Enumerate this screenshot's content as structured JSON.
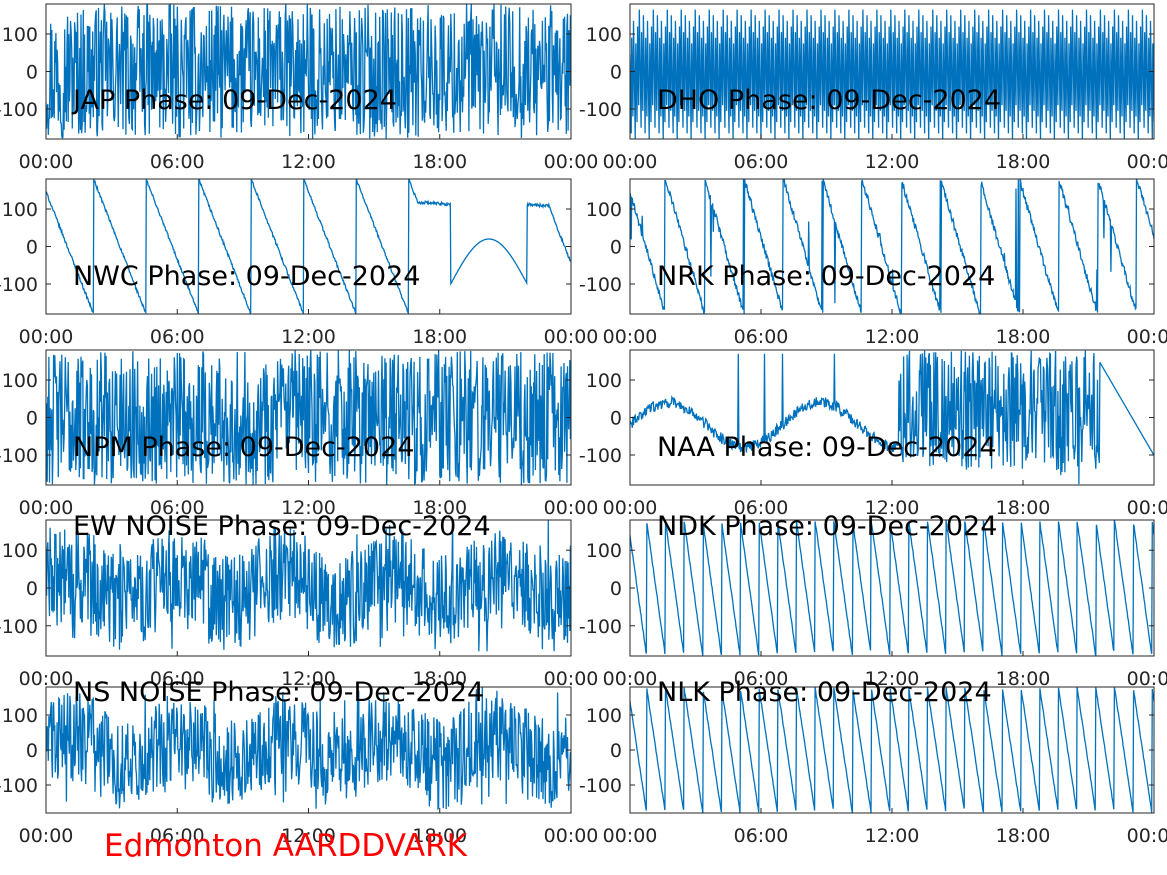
{
  "figure_caption": "Edmonton AARDDVARK",
  "colors": {
    "trace": "#0072bd",
    "caption": "#ff0000",
    "axes": "#262626"
  },
  "chart_data": [
    {
      "type": "line",
      "title": "JAP Phase: 09-Dec-2024",
      "pattern": "noise",
      "x_ticks": [
        "00:00",
        "06:00",
        "12:00",
        "18:00",
        "00:00"
      ],
      "y_ticks": [
        "100",
        "0",
        "-100"
      ],
      "y_tick_values": [
        100,
        0,
        -100
      ],
      "ylim": [
        -180,
        180
      ],
      "xlim_hours": [
        0,
        24
      ],
      "grid": false
    },
    {
      "type": "line",
      "title": "DHO Phase: 09-Dec-2024",
      "pattern": "fast-ramp",
      "x_ticks": [
        "00:00",
        "06:00",
        "12:00",
        "18:00",
        "00:00"
      ],
      "y_ticks": [
        "100",
        "0",
        "-100"
      ],
      "y_tick_values": [
        100,
        0,
        -100
      ],
      "ylim": [
        -180,
        180
      ],
      "xlim_hours": [
        0,
        24
      ],
      "grid": false
    },
    {
      "type": "line",
      "title": "NWC Phase: 09-Dec-2024",
      "pattern": "slow-ramp",
      "x_ticks": [
        "00:00",
        "06:00",
        "12:00",
        "18:00",
        "00:00"
      ],
      "y_ticks": [
        "100",
        "0",
        "-100"
      ],
      "y_tick_values": [
        100,
        0,
        -100
      ],
      "ylim": [
        -180,
        180
      ],
      "xlim_hours": [
        0,
        24
      ],
      "grid": false
    },
    {
      "type": "line",
      "title": "NRK Phase: 09-Dec-2024",
      "pattern": "ramp-jumpy",
      "x_ticks": [
        "00:00",
        "06:00",
        "12:00",
        "18:00",
        "00:00"
      ],
      "y_ticks": [
        "100",
        "0",
        "-100"
      ],
      "y_tick_values": [
        100,
        0,
        -100
      ],
      "ylim": [
        -180,
        180
      ],
      "xlim_hours": [
        0,
        24
      ],
      "grid": false
    },
    {
      "type": "line",
      "title": "NPM Phase: 09-Dec-2024",
      "pattern": "noise",
      "x_ticks": [
        "00:00",
        "06:00",
        "12:00",
        "18:00",
        "00:00"
      ],
      "y_ticks": [
        "100",
        "0",
        "-100"
      ],
      "y_tick_values": [
        100,
        0,
        -100
      ],
      "ylim": [
        -180,
        180
      ],
      "xlim_hours": [
        0,
        24
      ],
      "grid": false
    },
    {
      "type": "line",
      "title": "NAA Phase: 09-Dec-2024",
      "pattern": "mixed",
      "x_ticks": [
        "00:00",
        "06:00",
        "12:00",
        "18:00",
        "00:00"
      ],
      "y_ticks": [
        "100",
        "0",
        "-100"
      ],
      "y_tick_values": [
        100,
        0,
        -100
      ],
      "ylim": [
        -180,
        180
      ],
      "xlim_hours": [
        0,
        24
      ],
      "grid": false
    },
    {
      "type": "line",
      "title": "EW NOISE Phase: 09-Dec-2024",
      "pattern": "noise-mid",
      "x_ticks": [
        "00:00",
        "06:00",
        "12:00",
        "18:00",
        "00:00"
      ],
      "y_ticks": [
        "100",
        "0",
        "-100"
      ],
      "y_tick_values": [
        100,
        0,
        -100
      ],
      "ylim": [
        -180,
        180
      ],
      "xlim_hours": [
        0,
        24
      ],
      "grid": false
    },
    {
      "type": "line",
      "title": "NDK Phase: 09-Dec-2024",
      "pattern": "ramp",
      "x_ticks": [
        "00:00",
        "06:00",
        "12:00",
        "18:00",
        "00:00"
      ],
      "y_ticks": [
        "100",
        "0",
        "-100"
      ],
      "y_tick_values": [
        100,
        0,
        -100
      ],
      "ylim": [
        -180,
        180
      ],
      "xlim_hours": [
        0,
        24
      ],
      "grid": false
    },
    {
      "type": "line",
      "title": "NS NOISE Phase: 09-Dec-2024",
      "pattern": "noise-mid",
      "x_ticks": [
        "00:00",
        "06:00",
        "12:00",
        "18:00",
        "00:00"
      ],
      "y_ticks": [
        "100",
        "0",
        "-100"
      ],
      "y_tick_values": [
        100,
        0,
        -100
      ],
      "ylim": [
        -180,
        180
      ],
      "xlim_hours": [
        0,
        24
      ],
      "grid": false
    },
    {
      "type": "line",
      "title": "NLK Phase: 09-Dec-2024",
      "pattern": "ramp",
      "x_ticks": [
        "00:00",
        "06:00",
        "12:00",
        "18:00",
        "00:00"
      ],
      "y_ticks": [
        "100",
        "0",
        "-100"
      ],
      "y_tick_values": [
        100,
        0,
        -100
      ],
      "ylim": [
        -180,
        180
      ],
      "xlim_hours": [
        0,
        24
      ],
      "grid": false
    }
  ]
}
